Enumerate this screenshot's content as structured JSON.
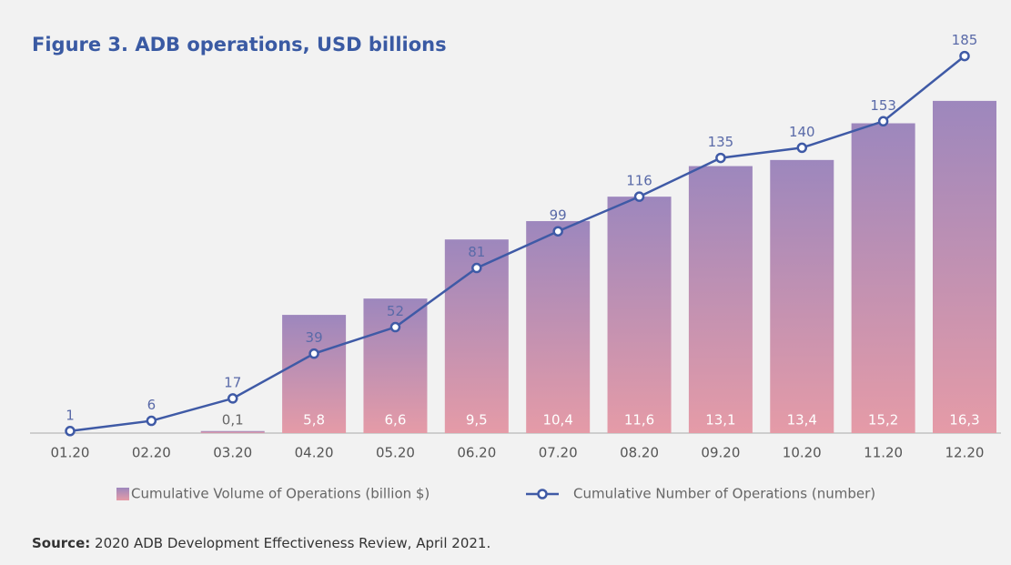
{
  "chart_data": {
    "type": "bar-line",
    "title": "Figure 3. ADB operations, USD billions",
    "categories": [
      "01.20",
      "02.20",
      "03.20",
      "04.20",
      "05.20",
      "06.20",
      "07.20",
      "08.20",
      "09.20",
      "10.20",
      "11.20",
      "12.20"
    ],
    "series": [
      {
        "name": "Cumulative Volume of Operations (billion $)",
        "type": "bar",
        "gradient": [
          "#9d87bd",
          "#e59ba7"
        ],
        "values": [
          null,
          null,
          0.1,
          5.8,
          6.6,
          9.5,
          10.4,
          11.6,
          13.1,
          13.4,
          15.2,
          16.3
        ],
        "value_labels": [
          null,
          null,
          "0,1",
          "5,8",
          "6,6",
          "9,5",
          "10,4",
          "11,6",
          "13,1",
          "13,4",
          "15,2",
          "16,3"
        ]
      },
      {
        "name": "Cumulative Number of Operations (number)",
        "type": "line",
        "axis": "y2",
        "color": "#3f5aa6",
        "values": [
          1,
          6,
          17,
          39,
          52,
          81,
          99,
          116,
          135,
          140,
          153,
          185
        ]
      }
    ],
    "ylim": [
      0,
      20
    ],
    "y2lim": [
      0,
      200
    ],
    "source": {
      "label": "Source:",
      "text": "2020 ADB Development Effectiveness Review, April 2021."
    }
  }
}
